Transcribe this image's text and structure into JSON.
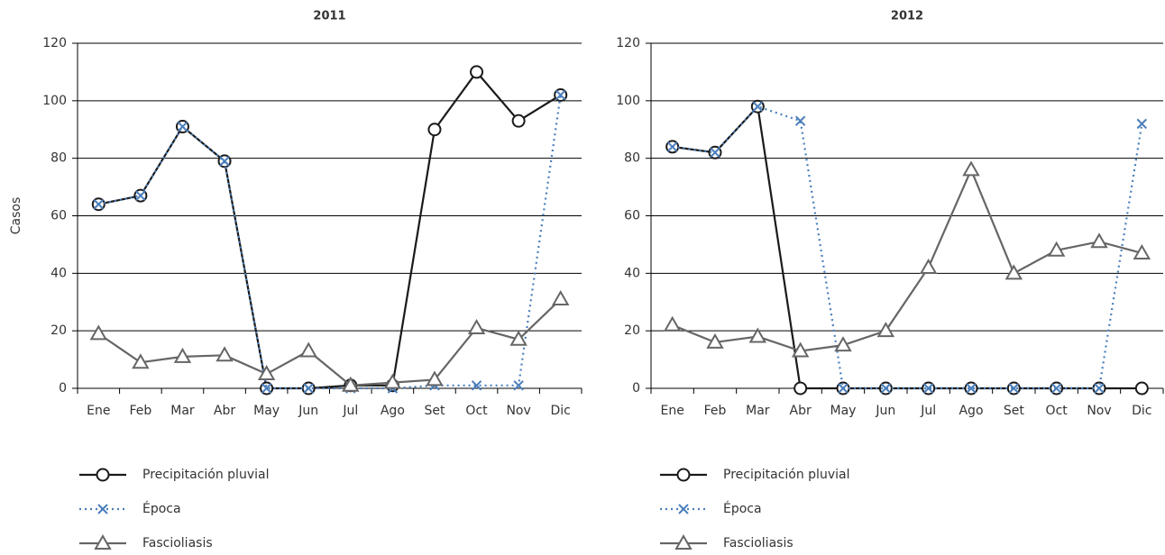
{
  "chart_data": [
    {
      "type": "line",
      "title": "2011",
      "ylabel": "Casos",
      "categories": [
        "Ene",
        "Feb",
        "Mar",
        "Abr",
        "May",
        "Jun",
        "Jul",
        "Ago",
        "Set",
        "Oct",
        "Nov",
        "Dic"
      ],
      "ylim": [
        0,
        120
      ],
      "yticks": [
        0,
        20,
        40,
        60,
        80,
        100,
        120
      ],
      "grid": true,
      "series": [
        {
          "name": "Precipitación pluvial",
          "color": "#1a1a1a",
          "marker": "circle",
          "linestyle": "solid",
          "values": [
            64,
            67,
            91,
            79,
            0,
            0,
            1,
            1,
            90,
            110,
            93,
            102
          ]
        },
        {
          "name": "Época",
          "color": "#4a7ebb",
          "marker": "x",
          "linestyle": "dotted",
          "values": [
            64,
            67,
            91,
            79,
            0,
            0,
            0,
            0,
            1,
            1,
            1,
            102
          ]
        },
        {
          "name": "Fascioliasis",
          "color": "#666666",
          "marker": "triangle",
          "linestyle": "solid",
          "values": [
            19,
            9,
            11,
            11.5,
            5,
            13,
            1,
            2,
            3,
            21,
            17,
            31
          ]
        }
      ]
    },
    {
      "type": "line",
      "title": "2012",
      "categories": [
        "Ene",
        "Feb",
        "Mar",
        "Abr",
        "May",
        "Jun",
        "Jul",
        "Ago",
        "Set",
        "Oct",
        "Nov",
        "Dic"
      ],
      "ylim": [
        0,
        120
      ],
      "yticks": [
        0,
        20,
        40,
        60,
        80,
        100,
        120
      ],
      "grid": true,
      "series": [
        {
          "name": "Precipitación pluvial",
          "color": "#1a1a1a",
          "marker": "circle",
          "linestyle": "solid",
          "values": [
            84,
            82,
            98,
            0,
            0,
            0,
            0,
            0,
            0,
            0,
            0,
            0
          ]
        },
        {
          "name": "Época",
          "color": "#4a7ebb",
          "marker": "x",
          "linestyle": "dotted",
          "values": [
            84,
            82,
            98,
            93,
            0,
            0,
            0,
            0,
            0,
            0,
            0,
            92
          ]
        },
        {
          "name": "Fascioliasis",
          "color": "#666666",
          "marker": "triangle",
          "linestyle": "solid",
          "values": [
            22,
            16,
            18,
            13,
            15,
            20,
            42,
            76,
            40,
            48,
            51,
            47
          ]
        }
      ]
    }
  ]
}
